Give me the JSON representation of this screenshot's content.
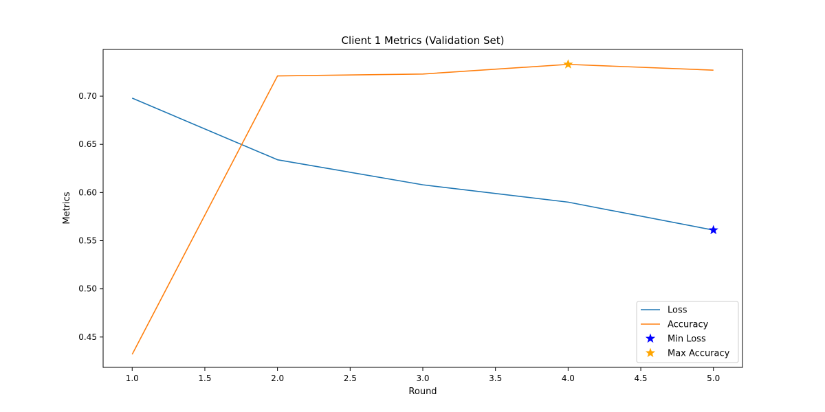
{
  "chart_data": {
    "type": "line",
    "title": "Client 1 Metrics (Validation Set)",
    "xlabel": "Round",
    "ylabel": "Metrics",
    "x": [
      1.0,
      2.0,
      3.0,
      4.0,
      5.0
    ],
    "xlim": [
      0.8,
      5.2
    ],
    "ylim": [
      0.4185,
      0.7485
    ],
    "xticks": [
      1.0,
      1.5,
      2.0,
      2.5,
      3.0,
      3.5,
      4.0,
      4.5,
      5.0
    ],
    "xtick_labels": [
      "1.0",
      "1.5",
      "2.0",
      "2.5",
      "3.0",
      "3.5",
      "4.0",
      "4.5",
      "5.0"
    ],
    "yticks": [
      0.45,
      0.5,
      0.55,
      0.6,
      0.65,
      0.7
    ],
    "ytick_labels": [
      "0.45",
      "0.50",
      "0.55",
      "0.60",
      "0.65",
      "0.70"
    ],
    "grid": false,
    "legend_position": "bottom-right",
    "series": [
      {
        "name": "Loss",
        "values": [
          0.698,
          0.634,
          0.608,
          0.59,
          0.561
        ],
        "color": "#1f77b4"
      },
      {
        "name": "Accuracy",
        "values": [
          0.432,
          0.721,
          0.723,
          0.733,
          0.727
        ],
        "color": "#ff7f0e"
      }
    ],
    "markers": [
      {
        "name": "Min Loss",
        "x": 5.0,
        "y": 0.561,
        "color": "#0000ff",
        "shape": "star"
      },
      {
        "name": "Max Accuracy",
        "x": 4.0,
        "y": 0.733,
        "color": "#ffa500",
        "shape": "star"
      }
    ]
  }
}
